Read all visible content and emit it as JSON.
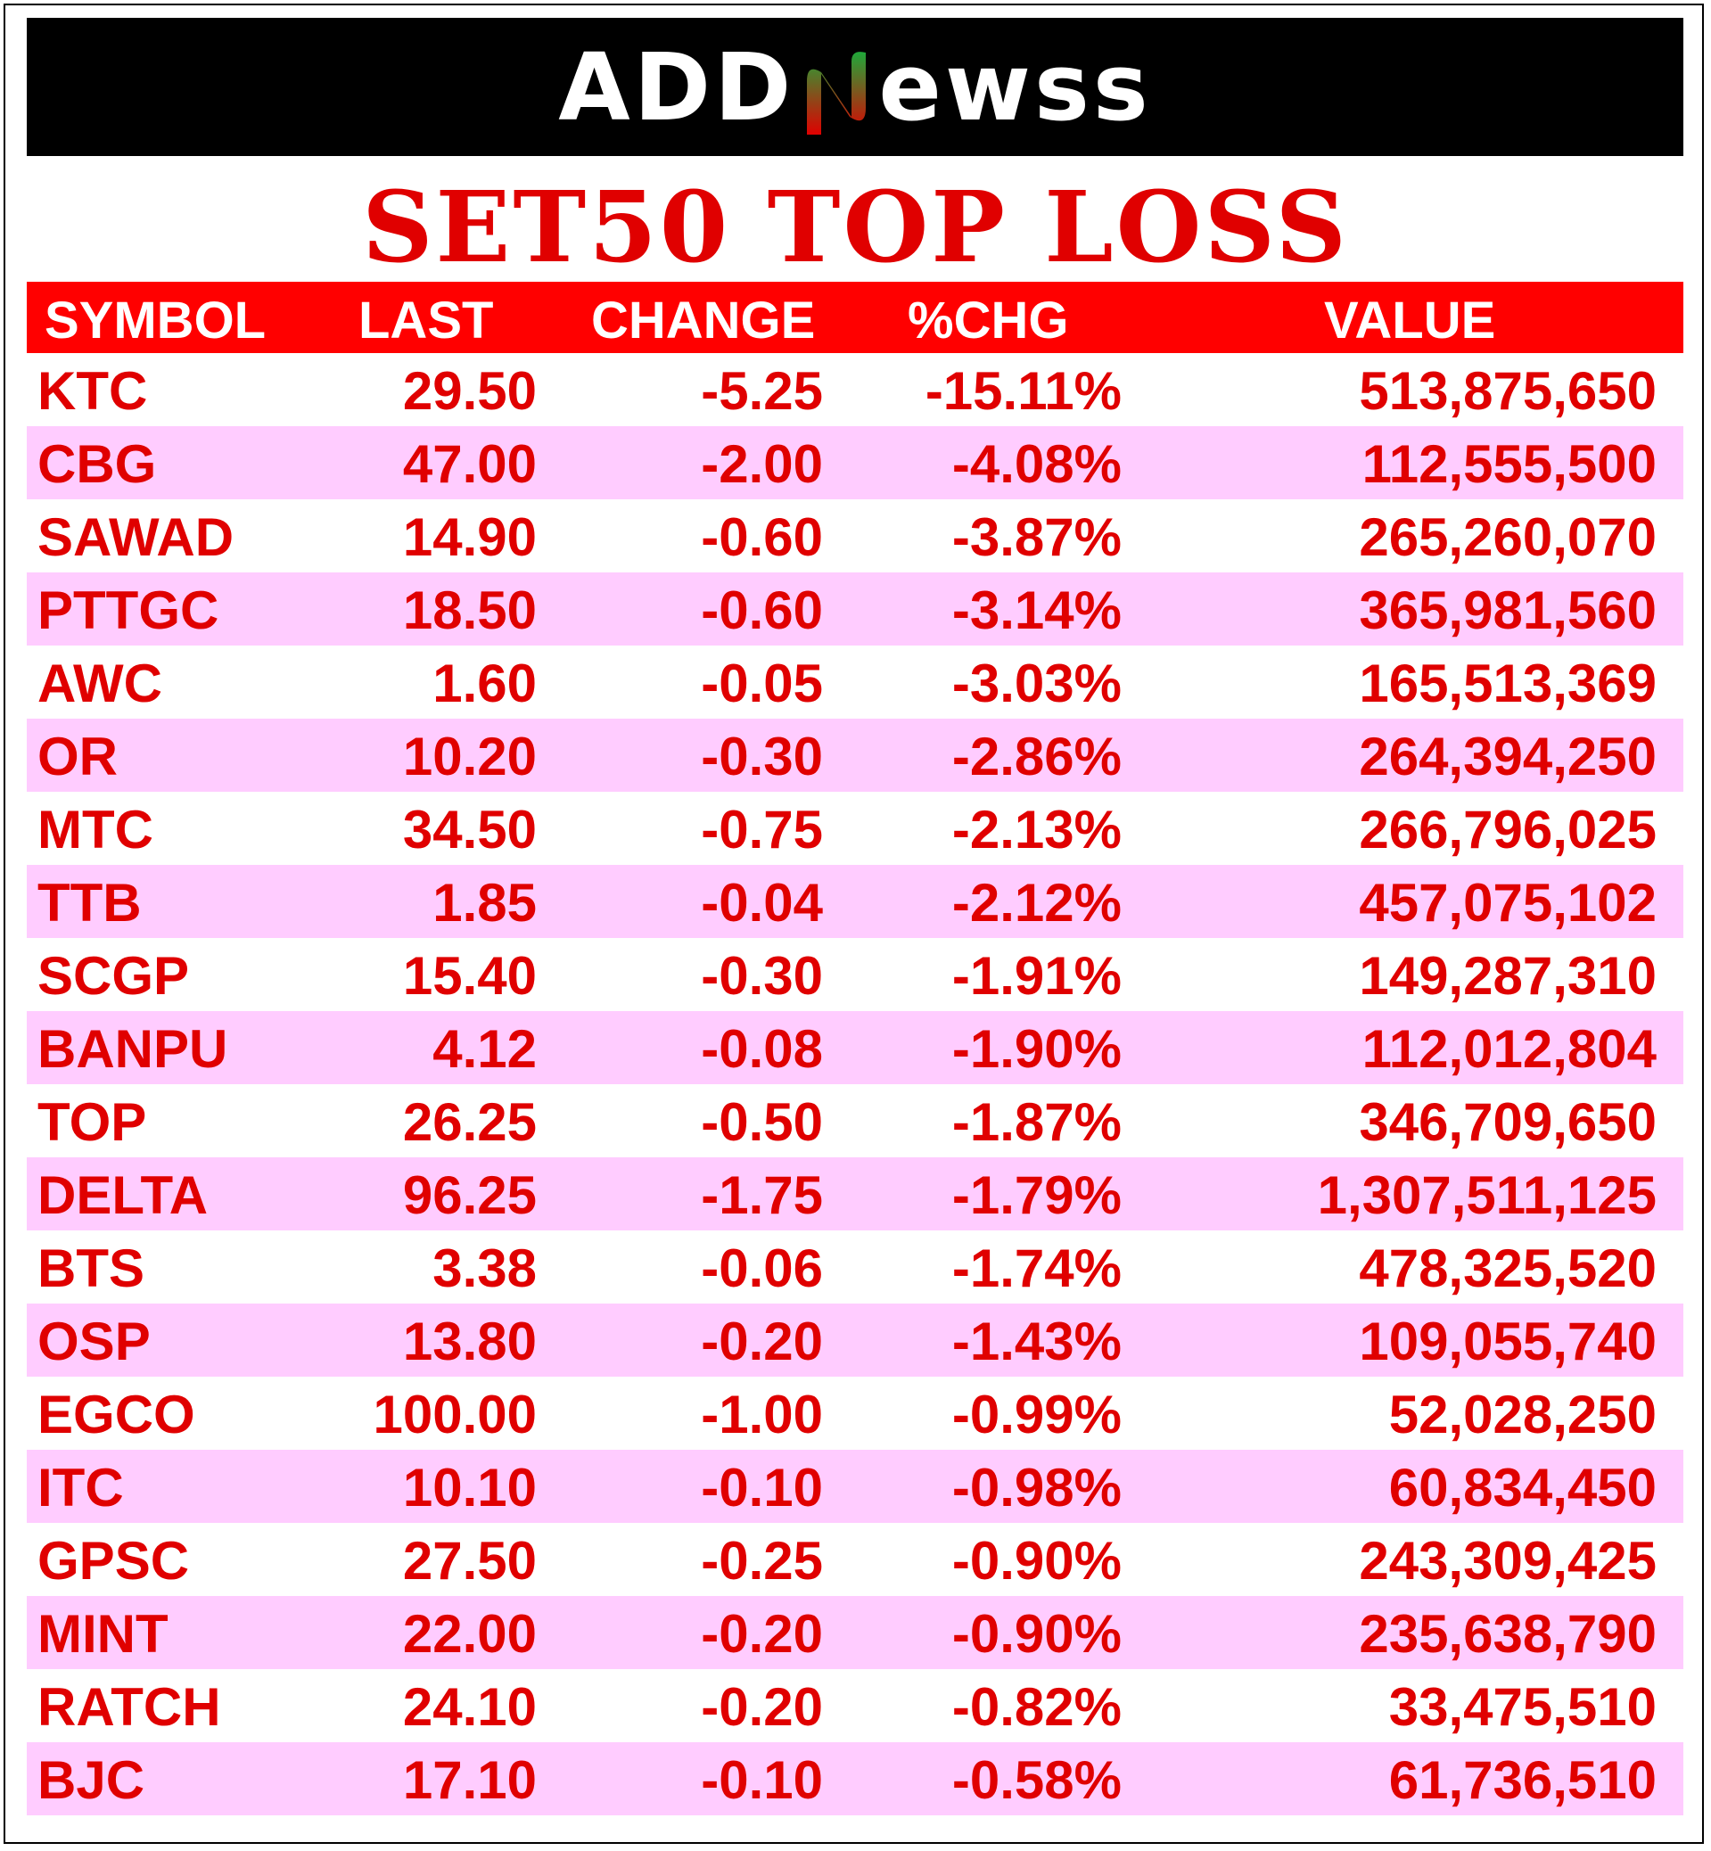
{
  "header": {
    "logo_left": "ADD",
    "logo_right": "ewss",
    "logo_accent_color": "#1fa83a",
    "logo_accent_color_2": "#e00000"
  },
  "title": "SET50 TOP LOSS",
  "table": {
    "columns": [
      "SYMBOL",
      "LAST",
      "CHANGE",
      "%CHG",
      "VALUE"
    ],
    "rows": [
      {
        "symbol": "KTC",
        "last": "29.50",
        "change": "-5.25",
        "pct": "-15.11%",
        "value": "513,875,650"
      },
      {
        "symbol": "CBG",
        "last": "47.00",
        "change": "-2.00",
        "pct": "-4.08%",
        "value": "112,555,500"
      },
      {
        "symbol": "SAWAD",
        "last": "14.90",
        "change": "-0.60",
        "pct": "-3.87%",
        "value": "265,260,070"
      },
      {
        "symbol": "PTTGC",
        "last": "18.50",
        "change": "-0.60",
        "pct": "-3.14%",
        "value": "365,981,560"
      },
      {
        "symbol": "AWC",
        "last": "1.60",
        "change": "-0.05",
        "pct": "-3.03%",
        "value": "165,513,369"
      },
      {
        "symbol": "OR",
        "last": "10.20",
        "change": "-0.30",
        "pct": "-2.86%",
        "value": "264,394,250"
      },
      {
        "symbol": "MTC",
        "last": "34.50",
        "change": "-0.75",
        "pct": "-2.13%",
        "value": "266,796,025"
      },
      {
        "symbol": "TTB",
        "last": "1.85",
        "change": "-0.04",
        "pct": "-2.12%",
        "value": "457,075,102"
      },
      {
        "symbol": "SCGP",
        "last": "15.40",
        "change": "-0.30",
        "pct": "-1.91%",
        "value": "149,287,310"
      },
      {
        "symbol": "BANPU",
        "last": "4.12",
        "change": "-0.08",
        "pct": "-1.90%",
        "value": "112,012,804"
      },
      {
        "symbol": "TOP",
        "last": "26.25",
        "change": "-0.50",
        "pct": "-1.87%",
        "value": "346,709,650"
      },
      {
        "symbol": "DELTA",
        "last": "96.25",
        "change": "-1.75",
        "pct": "-1.79%",
        "value": "1,307,511,125"
      },
      {
        "symbol": "BTS",
        "last": "3.38",
        "change": "-0.06",
        "pct": "-1.74%",
        "value": "478,325,520"
      },
      {
        "symbol": "OSP",
        "last": "13.80",
        "change": "-0.20",
        "pct": "-1.43%",
        "value": "109,055,740"
      },
      {
        "symbol": "EGCO",
        "last": "100.00",
        "change": "-1.00",
        "pct": "-0.99%",
        "value": "52,028,250"
      },
      {
        "symbol": "ITC",
        "last": "10.10",
        "change": "-0.10",
        "pct": "-0.98%",
        "value": "60,834,450"
      },
      {
        "symbol": "GPSC",
        "last": "27.50",
        "change": "-0.25",
        "pct": "-0.90%",
        "value": "243,309,425"
      },
      {
        "symbol": "MINT",
        "last": "22.00",
        "change": "-0.20",
        "pct": "-0.90%",
        "value": "235,638,790"
      },
      {
        "symbol": "RATCH",
        "last": "24.10",
        "change": "-0.20",
        "pct": "-0.82%",
        "value": "33,475,510"
      },
      {
        "symbol": "BJC",
        "last": "17.10",
        "change": "-0.10",
        "pct": "-0.58%",
        "value": "61,736,510"
      }
    ]
  }
}
